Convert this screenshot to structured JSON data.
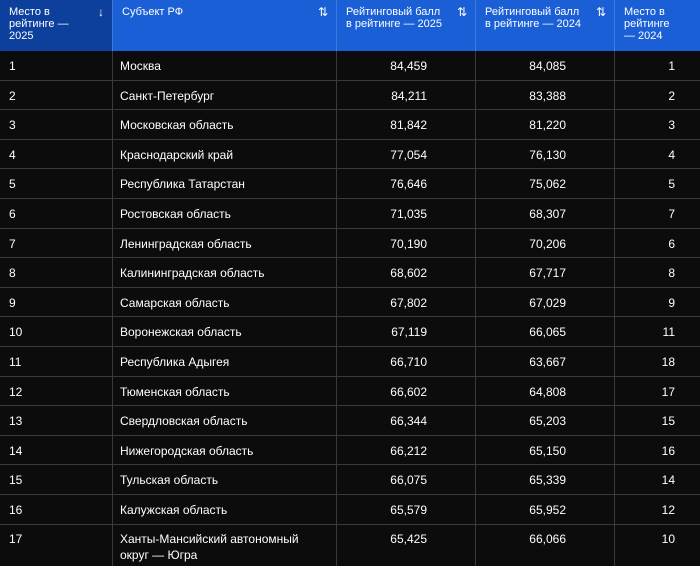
{
  "headers": {
    "col1": "Место в рейтинге — 2025",
    "col2": "Субъект РФ",
    "col3": "Рейтинговый балл в рейтинге — 2025",
    "col4": "Рейтинговый балл в рейтинге — 2024",
    "col5": "Место в рейтинге — 2024",
    "col1_sort": "↓",
    "col2_sort": "⇅",
    "col3_sort": "⇅",
    "col4_sort": "⇅"
  },
  "rows": [
    {
      "place2025": "1",
      "region": "Москва",
      "score2025": "84,459",
      "score2024": "84,085",
      "place2024": "1"
    },
    {
      "place2025": "2",
      "region": "Санкт-Петербург",
      "score2025": "84,211",
      "score2024": "83,388",
      "place2024": "2"
    },
    {
      "place2025": "3",
      "region": "Московская область",
      "score2025": "81,842",
      "score2024": "81,220",
      "place2024": "3"
    },
    {
      "place2025": "4",
      "region": "Краснодарский край",
      "score2025": "77,054",
      "score2024": "76,130",
      "place2024": "4"
    },
    {
      "place2025": "5",
      "region": "Республика Татарстан",
      "score2025": "76,646",
      "score2024": "75,062",
      "place2024": "5"
    },
    {
      "place2025": "6",
      "region": "Ростовская область",
      "score2025": "71,035",
      "score2024": "68,307",
      "place2024": "7"
    },
    {
      "place2025": "7",
      "region": "Ленинградская область",
      "score2025": "70,190",
      "score2024": "70,206",
      "place2024": "6"
    },
    {
      "place2025": "8",
      "region": "Калининградская область",
      "score2025": "68,602",
      "score2024": "67,717",
      "place2024": "8"
    },
    {
      "place2025": "9",
      "region": "Самарская область",
      "score2025": "67,802",
      "score2024": "67,029",
      "place2024": "9"
    },
    {
      "place2025": "10",
      "region": "Воронежская область",
      "score2025": "67,119",
      "score2024": "66,065",
      "place2024": "11"
    },
    {
      "place2025": "11",
      "region": "Республика Адыгея",
      "score2025": "66,710",
      "score2024": "63,667",
      "place2024": "18"
    },
    {
      "place2025": "12",
      "region": "Тюменская область",
      "score2025": "66,602",
      "score2024": "64,808",
      "place2024": "17"
    },
    {
      "place2025": "13",
      "region": "Свердловская область",
      "score2025": "66,344",
      "score2024": "65,203",
      "place2024": "15"
    },
    {
      "place2025": "14",
      "region": "Нижегородская область",
      "score2025": "66,212",
      "score2024": "65,150",
      "place2024": "16"
    },
    {
      "place2025": "15",
      "region": "Тульская область",
      "score2025": "66,075",
      "score2024": "65,339",
      "place2024": "14"
    },
    {
      "place2025": "16",
      "region": "Калужская область",
      "score2025": "65,579",
      "score2024": "65,952",
      "place2024": "12"
    },
    {
      "place2025": "17",
      "region": "Ханты-Мансийский автономный округ — Югра",
      "score2025": "65,425",
      "score2024": "66,066",
      "place2024": "10"
    }
  ]
}
